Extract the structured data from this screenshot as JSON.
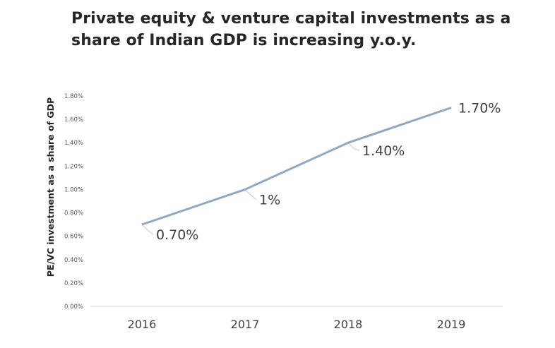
{
  "chart_data": {
    "type": "line",
    "title": "Private equity & venture capital investments as a share of Indian GDP is increasing y.o.y.",
    "xlabel": "",
    "ylabel": "PE/VC investment as a share of GDP",
    "categories": [
      "2016",
      "2017",
      "2018",
      "2019"
    ],
    "series": [
      {
        "values": [
          0.7,
          1.0,
          1.4,
          1.7
        ],
        "labels": [
          "0.70%",
          "1%",
          "1.40%",
          "1.70%"
        ]
      }
    ],
    "ylim": [
      0,
      1.8
    ],
    "yticks": [
      "0.00%",
      "0.20%",
      "0.40%",
      "0.60%",
      "0.80%",
      "1.00%",
      "1.20%",
      "1.40%",
      "1.60%",
      "1.80%"
    ],
    "grid": false,
    "legend": "none",
    "colors": {
      "line": "#8EA9C8",
      "leader": "#C8C8C8",
      "axis": "#D9D9D9"
    }
  }
}
